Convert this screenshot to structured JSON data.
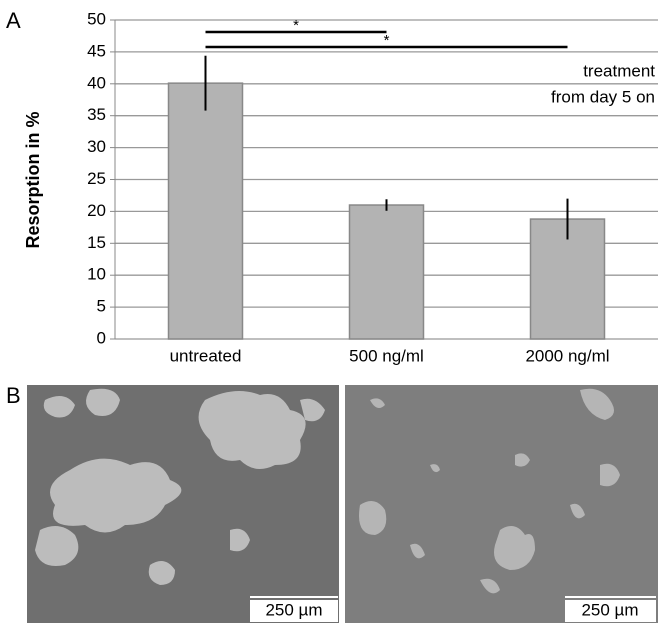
{
  "chart_data": {
    "type": "bar",
    "ylabel": "Resorption in %",
    "categories": [
      "untreated",
      "500 ng/ml",
      "2000 ng/ml"
    ],
    "values": [
      40.1,
      21,
      18.8
    ],
    "errors": [
      4.3,
      0.9,
      3.2
    ],
    "color": "#b3b3b3",
    "ylim": [
      0,
      50
    ],
    "yticks": [
      0,
      5,
      10,
      15,
      20,
      25,
      30,
      35,
      40,
      45,
      50
    ],
    "grid": true,
    "annotations": [
      "treatment",
      "from day 5 on"
    ],
    "significance": [
      {
        "label": "*",
        "between": [
          "untreated",
          "500 ng/ml"
        ]
      },
      {
        "label": "*",
        "between": [
          "untreated",
          "2000 ng/ml"
        ]
      }
    ]
  },
  "panel_labels": [
    "A",
    "B"
  ],
  "scale_bars": [
    "250 µm",
    "250 µm"
  ]
}
